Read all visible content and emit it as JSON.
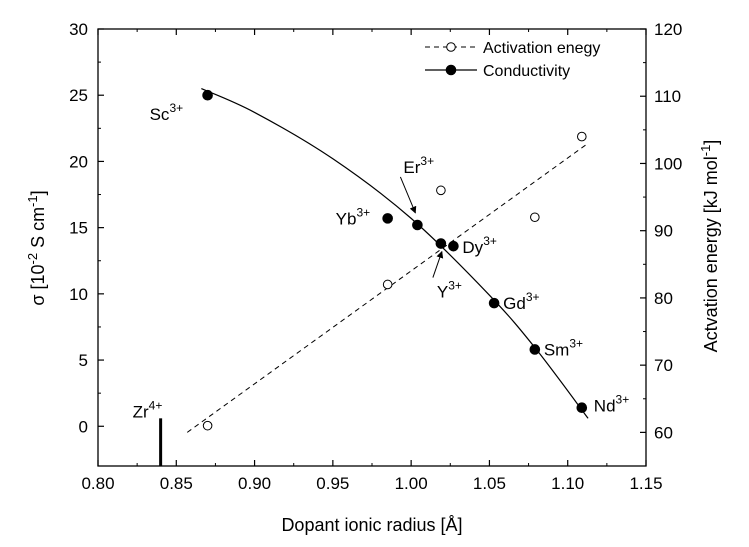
{
  "chart_data": {
    "type": "scatter",
    "xlabel": "Dopant ionic radius [Å]",
    "ylabel_left": "σ [10-2 S cm-1]",
    "ylabel_right": "Actvation energy [kJ mol-1]",
    "xlim": [
      0.8,
      1.15
    ],
    "ylim_left": [
      -3,
      30
    ],
    "ylim_right": [
      55,
      120
    ],
    "x_ticks": [
      "0.80",
      "0.85",
      "0.90",
      "0.95",
      "1.00",
      "1.05",
      "1.10",
      "1.15"
    ],
    "y_left_ticks": [
      "0",
      "5",
      "10",
      "15",
      "20",
      "25",
      "30"
    ],
    "y_right_ticks": [
      "60",
      "70",
      "80",
      "90",
      "100",
      "110",
      "120"
    ],
    "legend_placement": "top-right",
    "grid": false,
    "series": [
      {
        "name": "Activation enegy",
        "marker": "open-circle",
        "line": "dashed",
        "axis": "right",
        "points": [
          {
            "x": 0.87,
            "y": 61.0
          },
          {
            "x": 0.985,
            "y": 82.0
          },
          {
            "x": 1.019,
            "y": 96.0
          },
          {
            "x": 1.079,
            "y": 92.0
          },
          {
            "x": 1.109,
            "y": 104.0
          }
        ],
        "fit": [
          [
            0.857,
            60.0
          ],
          [
            1.113,
            103.0
          ]
        ]
      },
      {
        "name": "Conductivity",
        "marker": "filled-circle",
        "line": "solid",
        "axis": "left",
        "points": [
          {
            "x": 0.87,
            "y": 25.0,
            "label": "Sc",
            "charge": "3+"
          },
          {
            "x": 0.985,
            "y": 15.7,
            "label": "Yb",
            "charge": "3+"
          },
          {
            "x": 1.004,
            "y": 15.2,
            "label": "Er",
            "charge": "3+"
          },
          {
            "x": 1.019,
            "y": 13.8,
            "label": "Y",
            "charge": "3+"
          },
          {
            "x": 1.027,
            "y": 13.6,
            "label": "Dy",
            "charge": "3+"
          },
          {
            "x": 1.053,
            "y": 9.3,
            "label": "Gd",
            "charge": "3+"
          },
          {
            "x": 1.079,
            "y": 5.8,
            "label": "Sm",
            "charge": "3+"
          },
          {
            "x": 1.109,
            "y": 1.4,
            "label": "Nd",
            "charge": "3+"
          }
        ],
        "fit": [
          [
            0.866,
            25.5
          ],
          [
            0.9,
            23.7
          ],
          [
            0.95,
            20.2
          ],
          [
            1.0,
            15.7
          ],
          [
            1.05,
            9.9
          ],
          [
            1.08,
            5.8
          ],
          [
            1.113,
            0.6
          ]
        ]
      }
    ],
    "reference_marker": {
      "x": 0.84,
      "y_from": -3,
      "y_to": 0.6,
      "label": "Zr",
      "charge": "4+"
    }
  }
}
